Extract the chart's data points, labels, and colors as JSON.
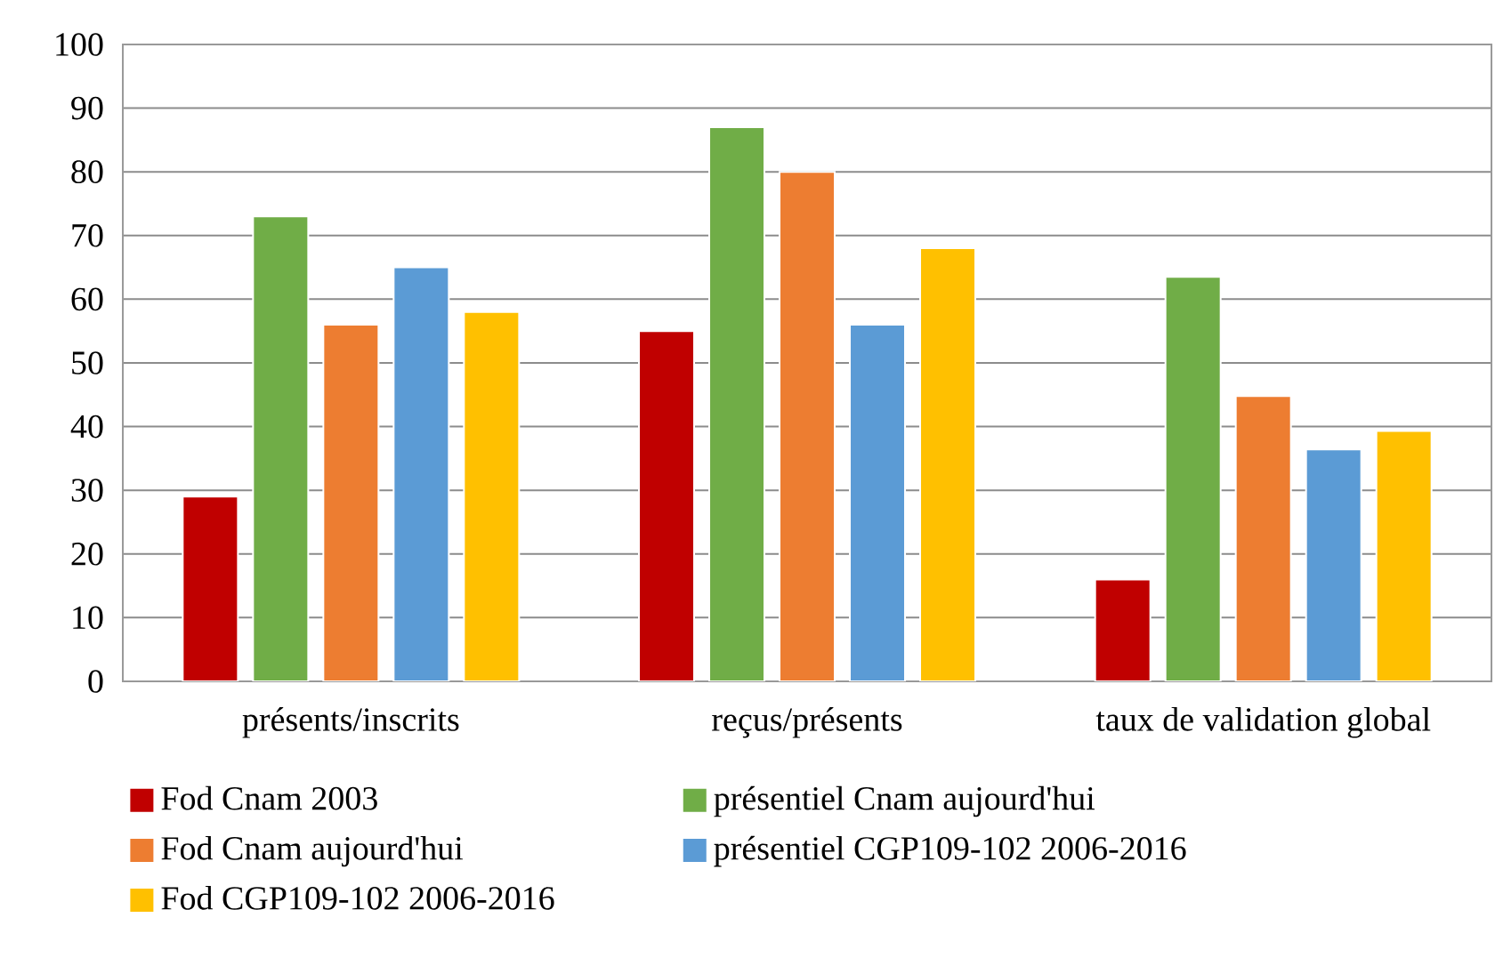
{
  "chart_data": {
    "type": "bar",
    "categories": [
      "présents/inscrits",
      "reçus/présents",
      "taux de validation global"
    ],
    "series": [
      {
        "name": "Fod Cnam 2003",
        "color": "#c00000",
        "values": [
          29,
          55,
          16
        ]
      },
      {
        "name": "présentiel Cnam aujourd'hui",
        "color": "#70ad47",
        "values": [
          73,
          87,
          63.5
        ]
      },
      {
        "name": "Fod Cnam aujourd'hui",
        "color": "#ed7d31",
        "values": [
          56,
          80,
          44.8
        ]
      },
      {
        "name": "présentiel CGP109-102 2006-2016",
        "color": "#5b9bd5",
        "values": [
          65,
          56,
          36.4
        ]
      },
      {
        "name": "Fod CGP109-102 2006-2016",
        "color": "#ffc000",
        "values": [
          58,
          68,
          39.3
        ]
      }
    ],
    "ylim": [
      0,
      100
    ],
    "yticks": [
      0,
      10,
      20,
      30,
      40,
      50,
      60,
      70,
      80,
      90,
      100
    ],
    "grid": "y",
    "legend": "bottom"
  }
}
